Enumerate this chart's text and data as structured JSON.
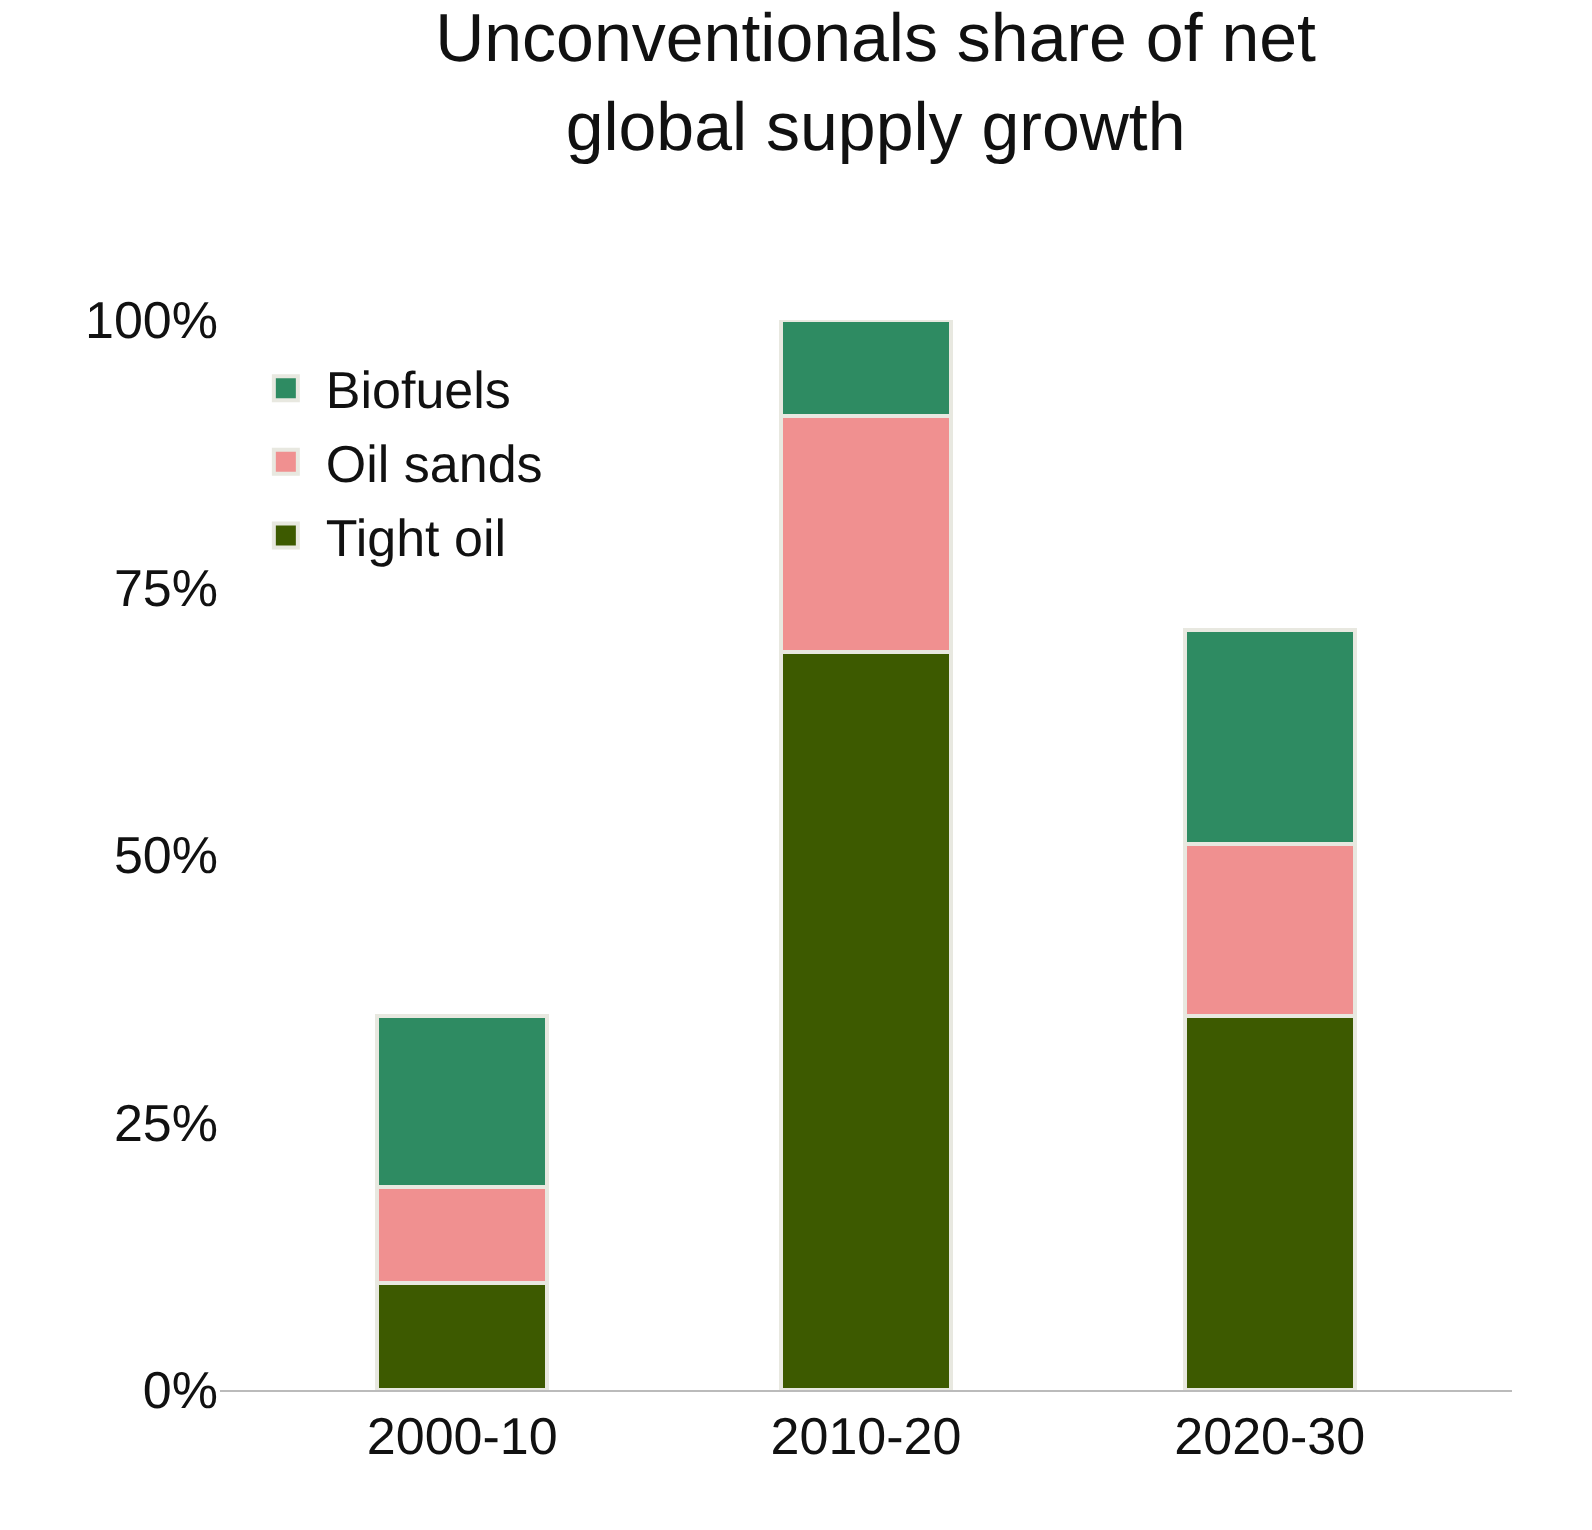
{
  "chart_data": {
    "type": "bar",
    "stacked": true,
    "title": "Unconventionals share of net global supply growth",
    "categories": [
      "2000-10",
      "2010-20",
      "2020-30"
    ],
    "series": [
      {
        "name": "Tight oil",
        "color": "#3d5a00",
        "values": [
          10,
          69,
          35
        ]
      },
      {
        "name": "Oil sands",
        "color": "#f09090",
        "values": [
          9,
          22,
          16
        ]
      },
      {
        "name": "Biofuels",
        "color": "#2e8b62",
        "values": [
          16,
          9,
          20
        ]
      }
    ],
    "ylim": [
      0,
      100
    ],
    "yticks": [
      {
        "value": 0,
        "label": "0%"
      },
      {
        "value": 25,
        "label": "25%"
      },
      {
        "value": 50,
        "label": "50%"
      },
      {
        "value": 75,
        "label": "75%"
      },
      {
        "value": 100,
        "label": "100%"
      }
    ],
    "legend": "top left"
  }
}
